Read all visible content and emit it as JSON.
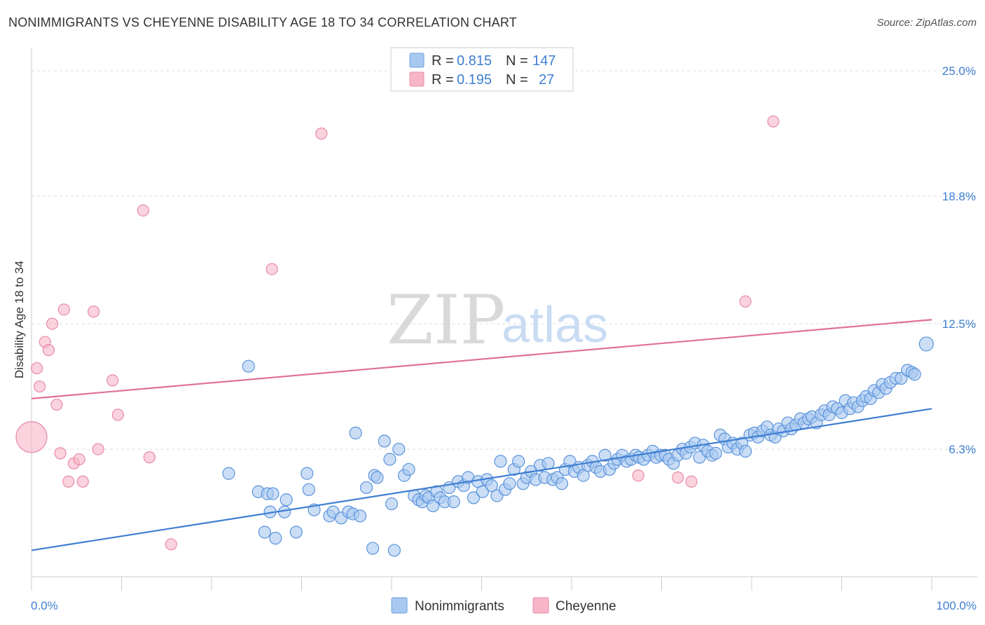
{
  "header": {
    "title": "NONIMMIGRANTS VS CHEYENNE DISABILITY AGE 18 TO 34 CORRELATION CHART",
    "source": "Source: ZipAtlas.com"
  },
  "watermark": {
    "zip": "ZIP",
    "atlas": "atlas"
  },
  "legend": {
    "rows": [
      {
        "r_label": "R =",
        "r_value": "0.815",
        "n_label": "N =",
        "n_value": "147",
        "color": "#a8c8f0"
      },
      {
        "r_label": "R =",
        "r_value": "0.195",
        "n_label": "N =",
        "n_value": "27",
        "color": "#f7b6c8"
      }
    ]
  },
  "bottom_legend": {
    "items": [
      {
        "label": "Nonimmigrants",
        "color": "#a8c8f0"
      },
      {
        "label": "Cheyenne",
        "color": "#f7b6c8"
      }
    ]
  },
  "chart_data": {
    "type": "scatter",
    "title": "NONIMMIGRANTS VS CHEYENNE DISABILITY AGE 18 TO 34 CORRELATION CHART",
    "xlabel": "",
    "ylabel": "Disability Age 18 to 34",
    "xlim": [
      0,
      100
    ],
    "ylim": [
      0,
      25.8
    ],
    "x_tick_labels": [
      "0.0%",
      "100.0%"
    ],
    "y_ticks": [
      6.3,
      12.5,
      18.8,
      25.0
    ],
    "y_tick_labels": [
      "6.3%",
      "12.5%",
      "18.8%",
      "25.0%"
    ],
    "grid": true,
    "legend_position": "top-center",
    "colors": {
      "blue": "#3f7fd1",
      "blue_fill": "#a8c8f0",
      "pink": "#e0709a",
      "pink_fill": "#f7b6c8"
    },
    "series": [
      {
        "name": "Nonimmigrants",
        "color": "#3f7fd1",
        "trendline": {
          "x": [
            0,
            100
          ],
          "y": [
            1.3,
            8.3
          ]
        },
        "points": [
          [
            21.9,
            5.1
          ],
          [
            24.1,
            10.4
          ],
          [
            25.2,
            4.2
          ],
          [
            25.9,
            2.2
          ],
          [
            26.2,
            4.1
          ],
          [
            26.5,
            3.2
          ],
          [
            26.8,
            4.1
          ],
          [
            27.1,
            1.9
          ],
          [
            28.1,
            3.2
          ],
          [
            28.3,
            3.8
          ],
          [
            29.4,
            2.2
          ],
          [
            30.6,
            5.1
          ],
          [
            30.8,
            4.3
          ],
          [
            31.4,
            3.3
          ],
          [
            33.1,
            3.0
          ],
          [
            33.5,
            3.2
          ],
          [
            34.4,
            2.9
          ],
          [
            35.2,
            3.2
          ],
          [
            35.7,
            3.1
          ],
          [
            36.0,
            7.1
          ],
          [
            36.5,
            3.0
          ],
          [
            37.2,
            4.4
          ],
          [
            37.9,
            1.4
          ],
          [
            38.1,
            5.0
          ],
          [
            38.4,
            4.9
          ],
          [
            39.2,
            6.7
          ],
          [
            39.8,
            5.8
          ],
          [
            40.0,
            3.6
          ],
          [
            40.3,
            1.3
          ],
          [
            40.8,
            6.3
          ],
          [
            41.4,
            5.0
          ],
          [
            41.9,
            5.3
          ],
          [
            42.5,
            4.0
          ],
          [
            43.0,
            3.8
          ],
          [
            43.4,
            3.7
          ],
          [
            43.8,
            4.0
          ],
          [
            44.1,
            3.9
          ],
          [
            44.6,
            3.5
          ],
          [
            45.0,
            4.2
          ],
          [
            45.4,
            3.9
          ],
          [
            45.9,
            3.7
          ],
          [
            46.4,
            4.4
          ],
          [
            46.9,
            3.7
          ],
          [
            47.4,
            4.7
          ],
          [
            48.0,
            4.5
          ],
          [
            48.5,
            4.9
          ],
          [
            49.1,
            3.9
          ],
          [
            49.6,
            4.7
          ],
          [
            50.1,
            4.2
          ],
          [
            50.6,
            4.8
          ],
          [
            51.1,
            4.5
          ],
          [
            51.7,
            4.0
          ],
          [
            52.1,
            5.7
          ],
          [
            52.6,
            4.3
          ],
          [
            53.1,
            4.6
          ],
          [
            53.6,
            5.3
          ],
          [
            54.1,
            5.7
          ],
          [
            54.6,
            4.6
          ],
          [
            55.0,
            4.9
          ],
          [
            55.5,
            5.2
          ],
          [
            56.0,
            4.8
          ],
          [
            56.5,
            5.5
          ],
          [
            57.0,
            4.9
          ],
          [
            57.4,
            5.6
          ],
          [
            57.9,
            4.8
          ],
          [
            58.4,
            4.9
          ],
          [
            58.9,
            4.6
          ],
          [
            59.3,
            5.3
          ],
          [
            59.8,
            5.7
          ],
          [
            60.3,
            5.2
          ],
          [
            60.8,
            5.4
          ],
          [
            61.3,
            5.0
          ],
          [
            61.8,
            5.5
          ],
          [
            62.3,
            5.7
          ],
          [
            62.7,
            5.4
          ],
          [
            63.2,
            5.2
          ],
          [
            63.7,
            6.0
          ],
          [
            64.2,
            5.3
          ],
          [
            64.7,
            5.6
          ],
          [
            65.1,
            5.8
          ],
          [
            65.6,
            6.0
          ],
          [
            66.1,
            5.7
          ],
          [
            66.6,
            5.8
          ],
          [
            67.1,
            6.0
          ],
          [
            67.5,
            5.9
          ],
          [
            68.0,
            5.8
          ],
          [
            68.5,
            6.0
          ],
          [
            69.0,
            6.2
          ],
          [
            69.4,
            5.9
          ],
          [
            69.9,
            6.0
          ],
          [
            70.4,
            6.0
          ],
          [
            70.8,
            5.8
          ],
          [
            71.3,
            5.6
          ],
          [
            71.8,
            6.0
          ],
          [
            72.3,
            6.3
          ],
          [
            72.7,
            6.1
          ],
          [
            73.2,
            6.4
          ],
          [
            73.7,
            6.6
          ],
          [
            74.2,
            5.9
          ],
          [
            74.6,
            6.5
          ],
          [
            75.1,
            6.2
          ],
          [
            75.6,
            6.0
          ],
          [
            76.0,
            6.1
          ],
          [
            76.5,
            7.0
          ],
          [
            77.0,
            6.8
          ],
          [
            77.4,
            6.4
          ],
          [
            77.9,
            6.6
          ],
          [
            78.4,
            6.3
          ],
          [
            78.9,
            6.6
          ],
          [
            79.3,
            6.2
          ],
          [
            79.8,
            7.0
          ],
          [
            80.3,
            7.1
          ],
          [
            80.7,
            6.9
          ],
          [
            81.2,
            7.2
          ],
          [
            81.7,
            7.4
          ],
          [
            82.1,
            7.0
          ],
          [
            82.6,
            6.9
          ],
          [
            83.0,
            7.3
          ],
          [
            83.5,
            7.2
          ],
          [
            84.0,
            7.6
          ],
          [
            84.4,
            7.3
          ],
          [
            84.9,
            7.5
          ],
          [
            85.4,
            7.8
          ],
          [
            85.8,
            7.6
          ],
          [
            86.3,
            7.8
          ],
          [
            86.7,
            7.9
          ],
          [
            87.2,
            7.6
          ],
          [
            87.7,
            8.0
          ],
          [
            88.1,
            8.2
          ],
          [
            88.6,
            8.0
          ],
          [
            89.0,
            8.4
          ],
          [
            89.5,
            8.3
          ],
          [
            90.0,
            8.1
          ],
          [
            90.4,
            8.7
          ],
          [
            90.9,
            8.3
          ],
          [
            91.3,
            8.6
          ],
          [
            91.8,
            8.4
          ],
          [
            92.3,
            8.7
          ],
          [
            92.7,
            8.9
          ],
          [
            93.2,
            8.8
          ],
          [
            93.6,
            9.2
          ],
          [
            94.1,
            9.1
          ],
          [
            94.5,
            9.5
          ],
          [
            94.9,
            9.3
          ],
          [
            95.4,
            9.6
          ],
          [
            96.0,
            9.8
          ],
          [
            96.6,
            9.8
          ],
          [
            97.3,
            10.2
          ],
          [
            97.8,
            10.1
          ],
          [
            98.1,
            10.0
          ],
          [
            99.4,
            11.5
          ]
        ]
      },
      {
        "name": "Cheyenne",
        "color": "#e0709a",
        "trendline": {
          "x": [
            0,
            100
          ],
          "y": [
            8.8,
            12.7
          ]
        },
        "points": [
          [
            0.0,
            6.9
          ],
          [
            0.6,
            10.3
          ],
          [
            0.9,
            9.4
          ],
          [
            1.5,
            11.6
          ],
          [
            1.9,
            11.2
          ],
          [
            2.3,
            12.5
          ],
          [
            2.8,
            8.5
          ],
          [
            3.2,
            6.1
          ],
          [
            3.6,
            13.2
          ],
          [
            4.1,
            4.7
          ],
          [
            4.7,
            5.6
          ],
          [
            5.3,
            5.8
          ],
          [
            5.7,
            4.7
          ],
          [
            6.9,
            13.1
          ],
          [
            7.4,
            6.3
          ],
          [
            9.0,
            9.7
          ],
          [
            9.6,
            8.0
          ],
          [
            12.4,
            18.1
          ],
          [
            13.1,
            5.9
          ],
          [
            15.5,
            1.6
          ],
          [
            26.7,
            15.2
          ],
          [
            32.2,
            21.9
          ],
          [
            67.4,
            5.0
          ],
          [
            71.8,
            4.9
          ],
          [
            73.3,
            4.7
          ],
          [
            79.3,
            13.6
          ],
          [
            82.4,
            22.5
          ]
        ]
      }
    ]
  }
}
